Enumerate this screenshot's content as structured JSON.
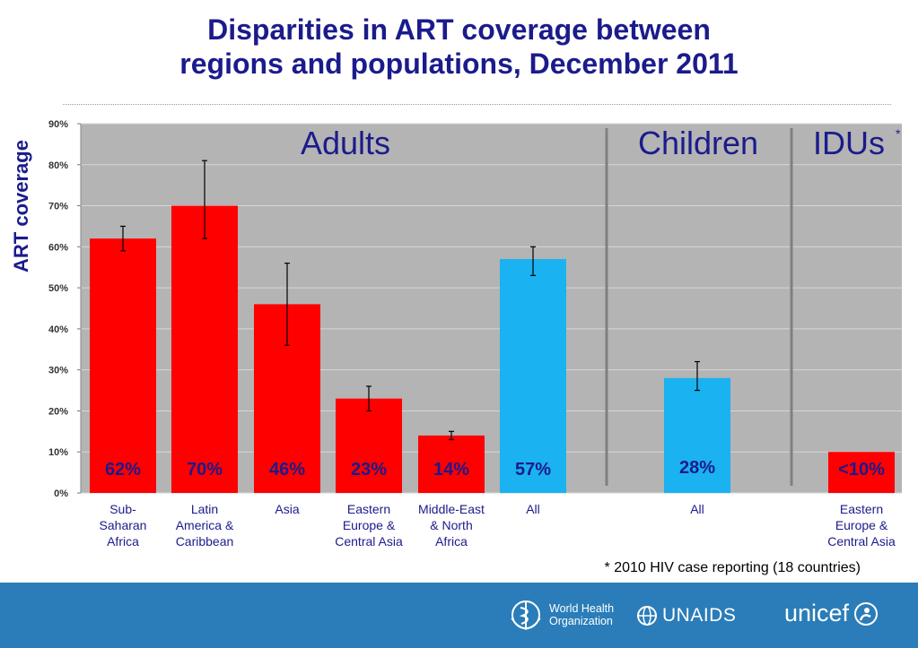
{
  "slide": {
    "title_line1": "Disparities in ART coverage between",
    "title_line2": "regions and populations, December 2011",
    "footnote": "* 2010 HIV case reporting (18 countries)"
  },
  "logos": {
    "who": [
      "World Health",
      "Organization"
    ],
    "unaids": "UNAIDS",
    "unicef": "unicef"
  },
  "colors": {
    "adult_region": "#ff0000",
    "all": "#1ab2f0",
    "background_panel": "#b4b4b4",
    "title": "#1b1b8c",
    "footer": "#2a7db8"
  },
  "chart_data": {
    "type": "bar",
    "title": "",
    "ylabel": "ART coverage",
    "xlabel": "",
    "ylim": [
      0,
      90
    ],
    "yticks": [
      "0%",
      "10%",
      "20%",
      "30%",
      "40%",
      "50%",
      "60%",
      "70%",
      "80%",
      "90%"
    ],
    "grid": true,
    "groups": [
      {
        "label": "Adults",
        "superscript": ""
      },
      {
        "label": "Children",
        "superscript": ""
      },
      {
        "label": "IDUs",
        "superscript": "*"
      }
    ],
    "bars": [
      {
        "category": [
          "Sub-",
          "Saharan",
          "Africa"
        ],
        "value": 62,
        "err_low": 59,
        "err_high": 65,
        "label": "62%",
        "group": "Adults",
        "color": "#ff0000"
      },
      {
        "category": [
          "Latin",
          "America &",
          "Caribbean"
        ],
        "value": 70,
        "err_low": 62,
        "err_high": 81,
        "label": "70%",
        "group": "Adults",
        "color": "#ff0000"
      },
      {
        "category": [
          "Asia"
        ],
        "value": 46,
        "err_low": 36,
        "err_high": 56,
        "label": "46%",
        "group": "Adults",
        "color": "#ff0000"
      },
      {
        "category": [
          "Eastern",
          "Europe &",
          "Central Asia"
        ],
        "value": 23,
        "err_low": 20,
        "err_high": 26,
        "label": "23%",
        "group": "Adults",
        "color": "#ff0000"
      },
      {
        "category": [
          "Middle-East",
          "& North",
          "Africa"
        ],
        "value": 14,
        "err_low": 13,
        "err_high": 15,
        "label": "14%",
        "group": "Adults",
        "color": "#ff0000"
      },
      {
        "category": [
          "All"
        ],
        "value": 57,
        "err_low": 53,
        "err_high": 60,
        "label": "57%",
        "group": "Adults",
        "color": "#1ab2f0"
      },
      {
        "category": [
          "All"
        ],
        "value": 28,
        "err_low": 25,
        "err_high": 32,
        "label": "28%",
        "group": "Children",
        "color": "#1ab2f0"
      },
      {
        "category": [
          "Eastern",
          "Europe &",
          "Central Asia"
        ],
        "value": 10,
        "label": "<10%",
        "group": "IDUs",
        "color": "#ff0000"
      }
    ]
  }
}
